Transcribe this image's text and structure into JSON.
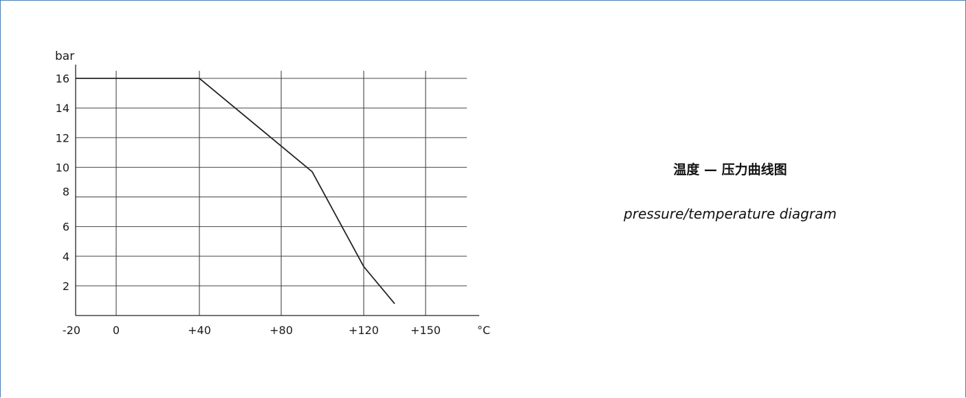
{
  "frame_color": "#4a7fb5",
  "caption": {
    "cn": "温度 — 压力曲线图",
    "en": "pressure/temperature diagram"
  },
  "chart_data": {
    "type": "line",
    "title": "",
    "xlabel": "°C",
    "ylabel": "bar",
    "x_ticks": [
      "-20",
      "0",
      "+40",
      "+80",
      "+120",
      "+150"
    ],
    "x_tick_values": [
      -20,
      0,
      40,
      80,
      120,
      150
    ],
    "y_ticks": [
      "2",
      "4",
      "6",
      "8",
      "10",
      "12",
      "14",
      "16"
    ],
    "y_tick_values": [
      2,
      4,
      6,
      8,
      10,
      12,
      14,
      16
    ],
    "xlim": [
      -20,
      170
    ],
    "ylim": [
      0,
      17
    ],
    "grid": true,
    "legend": "none",
    "series": [
      {
        "name": "",
        "color": "#222222",
        "x": [
          -20,
          40,
          95,
          120,
          135
        ],
        "y": [
          16,
          16,
          9.7,
          3.3,
          0.8
        ]
      }
    ]
  }
}
